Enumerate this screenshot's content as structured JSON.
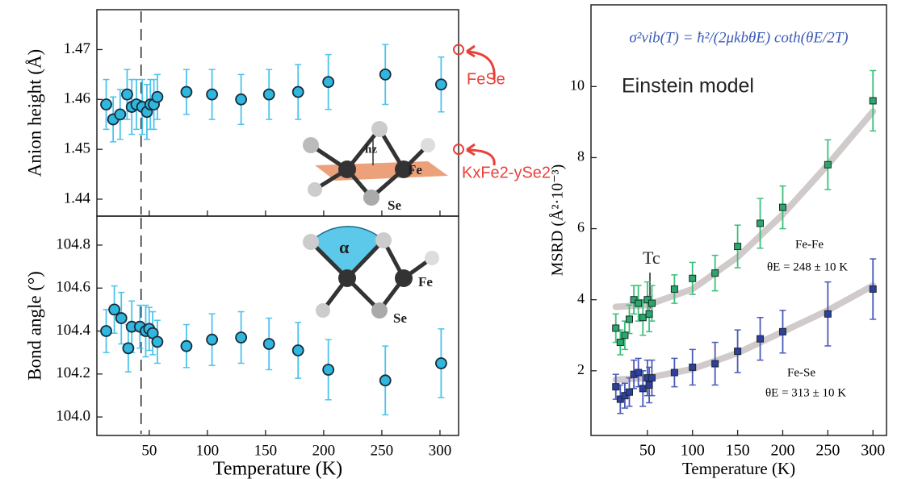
{
  "chart_data": [
    {
      "type": "scatter",
      "ylabel": "Anion height (Å)",
      "x": [
        13,
        19,
        25,
        31,
        35,
        39,
        44,
        48,
        51,
        54,
        57,
        82,
        104,
        129,
        153,
        178,
        204,
        253,
        301
      ],
      "series": [
        {
          "color": "#2fb7de",
          "error_color": "#4cc3ec",
          "values": [
            1.459,
            1.456,
            1.457,
            1.461,
            1.4585,
            1.459,
            1.4585,
            1.4575,
            1.459,
            1.459,
            1.4605,
            1.4615,
            1.461,
            1.46,
            1.461,
            1.4615,
            1.4635,
            1.465,
            1.463
          ],
          "errors": [
            0.005,
            0.0045,
            0.005,
            0.005,
            0.0055,
            0.005,
            0.0055,
            0.0055,
            0.005,
            0.005,
            0.0045,
            0.0045,
            0.005,
            0.005,
            0.005,
            0.0055,
            0.0055,
            0.006,
            0.0055
          ]
        }
      ],
      "xlim": [
        5,
        316
      ],
      "xticks": [
        50,
        100,
        150,
        200,
        250,
        300
      ],
      "xtick_labels": false,
      "ylim": [
        1.4366,
        1.478
      ],
      "yticks": [
        1.44,
        1.45,
        1.46,
        1.47
      ],
      "vline": 43,
      "reference_points": [
        {
          "label": "FeSe",
          "value": 1.47
        },
        {
          "label": "KxFe2-ySe2",
          "value": 1.45
        }
      ],
      "annotations": {
        "fe": "Fe",
        "se": "Se",
        "hz": "hz"
      }
    },
    {
      "type": "scatter",
      "ylabel": "Bond angle (°)",
      "xlabel": "Temperature (K)",
      "x": [
        13,
        20,
        26,
        32,
        35,
        42,
        47,
        50,
        53,
        57,
        82,
        104,
        129,
        153,
        178,
        204,
        253,
        301
      ],
      "series": [
        {
          "color": "#2fb7de",
          "error_color": "#4cc3ec",
          "values": [
            104.4,
            104.5,
            104.46,
            104.32,
            104.42,
            104.42,
            104.4,
            104.41,
            104.39,
            104.35,
            104.33,
            104.36,
            104.37,
            104.34,
            104.31,
            104.22,
            104.17,
            104.25
          ],
          "errors": [
            0.1,
            0.11,
            0.12,
            0.11,
            0.12,
            0.1,
            0.12,
            0.1,
            0.1,
            0.1,
            0.1,
            0.12,
            0.12,
            0.12,
            0.13,
            0.14,
            0.16,
            0.16
          ]
        }
      ],
      "xlim": [
        5,
        316
      ],
      "xticks": [
        50,
        100,
        150,
        200,
        250,
        300
      ],
      "xtick_labels": true,
      "ylim": [
        103.914,
        104.935
      ],
      "yticks": [
        {
          "value": 104.0,
          "label": "104.0"
        },
        {
          "value": 104.2,
          "label": "104.2"
        },
        {
          "value": 104.4,
          "label": "104.4"
        },
        {
          "value": 104.6,
          "label": "104.6"
        },
        {
          "value": 104.8,
          "label": "104.8"
        }
      ],
      "vline": 43,
      "annotations": {
        "alpha": "α",
        "fe": "Fe",
        "se": "Se"
      }
    },
    {
      "type": "scatter",
      "ylabel": "MSRD (Å²·10⁻³)",
      "xlabel": "Temperature (K)",
      "title": "σ²vib(T) = ħ²/(2μkbθE) coth(θE/2T)",
      "subtitle": "Einstein model",
      "x": [
        15,
        20,
        25,
        30,
        35,
        40,
        45,
        50,
        52,
        55,
        80,
        100,
        125,
        150,
        175,
        200,
        250,
        300
      ],
      "fit_x": [
        15,
        50,
        100,
        150,
        200,
        250,
        300
      ],
      "series": [
        {
          "name": "Fe-Fe",
          "annotation": "θE = 248 ± 10 K",
          "color": "#2aa86a",
          "error_color": "#3cbf7c",
          "values": [
            3.2,
            2.8,
            3.0,
            3.45,
            4.0,
            3.9,
            3.5,
            4.0,
            3.6,
            3.9,
            4.3,
            4.6,
            4.75,
            5.5,
            6.15,
            6.6,
            7.8,
            9.6
          ],
          "errors": [
            0.4,
            0.35,
            0.4,
            0.4,
            0.4,
            0.5,
            0.5,
            0.5,
            0.5,
            0.5,
            0.4,
            0.45,
            0.5,
            0.6,
            0.7,
            0.6,
            0.7,
            0.85
          ],
          "fit_values": [
            3.8,
            3.85,
            4.3,
            5.2,
            6.4,
            7.8,
            9.3
          ]
        },
        {
          "name": "Fe-Se",
          "annotation": "θE = 313 ± 10 K",
          "color": "#2f3f9f",
          "error_color": "#4a5ab8",
          "values": [
            1.55,
            1.2,
            1.3,
            1.4,
            1.9,
            1.95,
            1.5,
            1.8,
            1.6,
            1.8,
            1.95,
            2.1,
            2.2,
            2.55,
            2.9,
            3.1,
            3.6,
            4.3
          ],
          "errors": [
            0.35,
            0.4,
            0.35,
            0.4,
            0.4,
            0.4,
            0.5,
            0.5,
            0.5,
            0.5,
            0.4,
            0.5,
            0.6,
            0.6,
            0.6,
            0.6,
            0.9,
            0.85
          ],
          "fit_values": [
            1.75,
            1.8,
            2.05,
            2.5,
            3.1,
            3.7,
            4.4
          ]
        }
      ],
      "xlim": [
        -12.5,
        315
      ],
      "xticks": [
        50,
        100,
        150,
        200,
        250,
        300
      ],
      "xtick_labels": true,
      "ylim": [
        0.18,
        12.3
      ],
      "yticks": [
        2,
        4,
        6,
        8,
        10
      ],
      "annotations": {
        "tc": "Tc"
      }
    }
  ]
}
